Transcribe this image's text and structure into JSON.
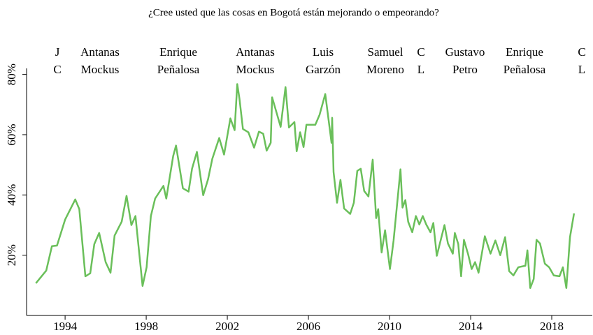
{
  "chart_data": {
    "type": "line",
    "title": "¿Cree usted que las cosas en Bogotá están mejorando o empeorando?",
    "annotations": [
      [
        "J",
        "C"
      ],
      [
        "Antanas",
        "Mockus"
      ],
      [
        "Enrique",
        "Peñalosa"
      ],
      [
        "Antanas",
        "Mockus"
      ],
      [
        "Luis",
        "Garzón"
      ],
      [
        "Samuel",
        "Moreno"
      ],
      [
        "C",
        "L"
      ],
      [
        "Gustavo",
        "Petro"
      ],
      [
        "Enrique",
        "Peñalosa"
      ],
      [
        "C",
        "L"
      ]
    ],
    "color": "#6abf5a",
    "xlim": [
      1992.1,
      2020
    ],
    "xticks": [
      1994,
      1998,
      2002,
      2006,
      2010,
      2014,
      2018
    ],
    "ylim": [
      0,
      82
    ],
    "yticks": [
      {
        "value": 20,
        "label": "20%"
      },
      {
        "value": 40,
        "label": "40%"
      },
      {
        "value": 60,
        "label": "60%"
      },
      {
        "value": 80,
        "label": "80%"
      }
    ],
    "grid": false,
    "x": [
      1992.56,
      1993.07,
      1993.35,
      1993.6,
      1994.0,
      1994.5,
      1994.7,
      1995.0,
      1995.24,
      1995.44,
      1995.68,
      1996.0,
      1996.24,
      1996.44,
      1996.79,
      1997.03,
      1997.27,
      1997.47,
      1997.82,
      1998.02,
      1998.23,
      1998.44,
      1998.85,
      1998.99,
      1999.33,
      1999.47,
      1999.81,
      2000.09,
      2000.26,
      2000.5,
      2000.81,
      2001.05,
      2001.26,
      2001.6,
      2001.84,
      2002.15,
      2002.36,
      2002.49,
      2002.6,
      2002.77,
      2003.04,
      2003.32,
      2003.56,
      2003.77,
      2003.94,
      2004.14,
      2004.21,
      2004.63,
      2004.87,
      2005.04,
      2005.31,
      2005.42,
      2005.59,
      2005.76,
      2005.9,
      2006.34,
      2006.55,
      2006.83,
      2007.14,
      2007.17,
      2007.24,
      2007.41,
      2007.58,
      2007.76,
      2008.06,
      2008.24,
      2008.41,
      2008.58,
      2008.75,
      2008.96,
      2009.17,
      2009.34,
      2009.44,
      2009.61,
      2009.78,
      2010.02,
      2010.2,
      2010.54,
      2010.64,
      2010.78,
      2010.92,
      2011.12,
      2011.3,
      2011.47,
      2011.64,
      2011.81,
      2012.02,
      2012.16,
      2012.33,
      2012.71,
      2012.88,
      2013.12,
      2013.22,
      2013.39,
      2013.53,
      2013.67,
      2013.88,
      2014.05,
      2014.22,
      2014.39,
      2014.7,
      2014.98,
      2015.22,
      2015.46,
      2015.7,
      2015.9,
      2016.11,
      2016.35,
      2016.7,
      2016.8,
      2016.94,
      2017.11,
      2017.25,
      2017.42,
      2017.66,
      2017.87,
      2018.1,
      2018.38,
      2018.55,
      2018.72,
      2018.9,
      2019.1
    ],
    "values": [
      10.7,
      14.9,
      23,
      23.2,
      31.8,
      38.5,
      35.3,
      13,
      14,
      23.7,
      27.4,
      17.7,
      14.2,
      26.5,
      31.1,
      39.7,
      30,
      33,
      9.8,
      16,
      33,
      38.8,
      43,
      38.8,
      52.9,
      56.4,
      42.2,
      41.1,
      48.7,
      54.3,
      39.9,
      45.2,
      52,
      58.9,
      53.4,
      65.4,
      61.5,
      76.8,
      71.9,
      61.9,
      60.8,
      55.7,
      61,
      60.3,
      54.7,
      57.3,
      72.4,
      62.6,
      75.8,
      62.4,
      64.2,
      54.5,
      60.8,
      55.9,
      63.3,
      63.3,
      66.6,
      73.5,
      57.3,
      65.6,
      47.6,
      37.4,
      45,
      35.5,
      33.7,
      37.4,
      48,
      48.7,
      41.3,
      39.5,
      51.7,
      32.3,
      35.3,
      20.9,
      28.3,
      15.4,
      24.9,
      48.5,
      35.8,
      38.3,
      31.1,
      27.6,
      33,
      30.2,
      33,
      30.2,
      27.6,
      30.7,
      19.8,
      30,
      23.9,
      20.5,
      27.4,
      23.7,
      13,
      25.1,
      20.2,
      15.4,
      17.7,
      14.2,
      26.3,
      20.5,
      24.9,
      20,
      26,
      14.7,
      13.3,
      16,
      16.5,
      21.6,
      9.1,
      12.1,
      25.1,
      23.9,
      17.2,
      16,
      13.3,
      13,
      16,
      9.1,
      26,
      33.9
    ]
  }
}
